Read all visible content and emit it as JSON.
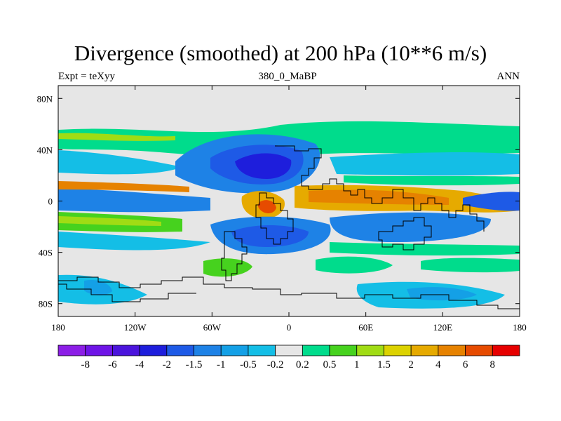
{
  "title": "Divergence (smoothed) at 200 hPa (10**6 m/s)",
  "subtitle_left": "Expt = teXyy",
  "subtitle_center": "380_0_MaBP",
  "subtitle_right": "ANN",
  "map": {
    "projection": "cylindrical-equidistant",
    "lon_range": [
      -180,
      180
    ],
    "lat_range": [
      -90,
      90
    ],
    "lon_ticks": [
      {
        "value": -180,
        "label": "180"
      },
      {
        "value": -120,
        "label": "120W"
      },
      {
        "value": -60,
        "label": "60W"
      },
      {
        "value": 0,
        "label": "0"
      },
      {
        "value": 60,
        "label": "60E"
      },
      {
        "value": 120,
        "label": "120E"
      },
      {
        "value": 180,
        "label": "180"
      }
    ],
    "lat_ticks": [
      {
        "value": 80,
        "label": "80N"
      },
      {
        "value": 40,
        "label": "40N"
      },
      {
        "value": 0,
        "label": "0"
      },
      {
        "value": -40,
        "label": "40S"
      },
      {
        "value": -80,
        "label": "80S"
      }
    ],
    "background_color": "#e6e6e6"
  },
  "colorbar": {
    "colors": [
      "#8c1ee6",
      "#6e14e6",
      "#4b14dc",
      "#1e1edc",
      "#1e5ae6",
      "#1e82e6",
      "#14a0e6",
      "#14bee6",
      "#e6e6e6",
      "#00dc8c",
      "#46d21e",
      "#a0dc14",
      "#dcd200",
      "#e6aa00",
      "#e68200",
      "#e64b00",
      "#e60000"
    ],
    "labels": [
      "-8",
      "-6",
      "-4",
      "-2",
      "-1.5",
      "-1",
      "-0.5",
      "-0.2",
      "0.2",
      "0.5",
      "1",
      "1.5",
      "2",
      "4",
      "6",
      "8"
    ]
  }
}
